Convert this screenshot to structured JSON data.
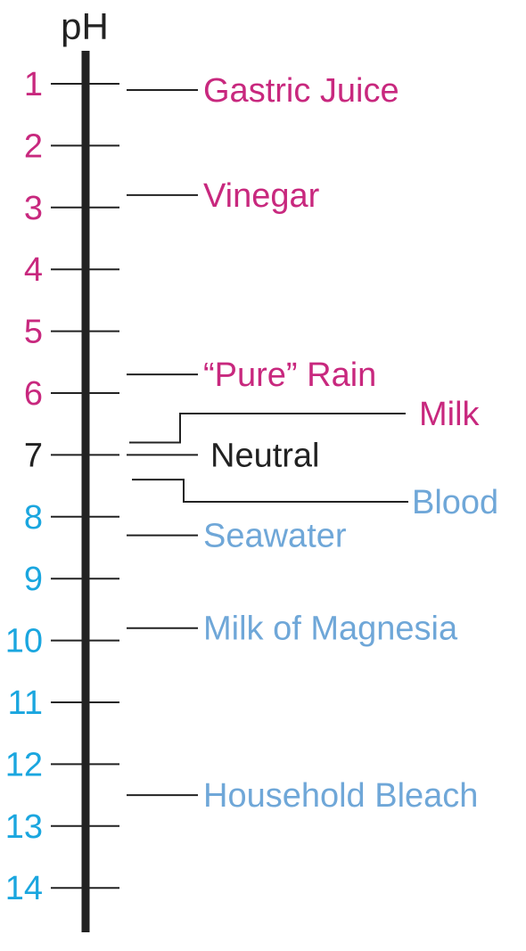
{
  "axis_title": "pH",
  "colors": {
    "acidic": "#c8287e",
    "neutral": "#222222",
    "basic_ticks": "#1aa6df",
    "basic_labels": "#6fa7d8",
    "lines": "#222222"
  },
  "ticks": [
    {
      "label": "1",
      "group": "acidic"
    },
    {
      "label": "2",
      "group": "acidic"
    },
    {
      "label": "3",
      "group": "acidic"
    },
    {
      "label": "4",
      "group": "acidic"
    },
    {
      "label": "5",
      "group": "acidic"
    },
    {
      "label": "6",
      "group": "acidic"
    },
    {
      "label": "7",
      "group": "neutral"
    },
    {
      "label": "8",
      "group": "basic"
    },
    {
      "label": "9",
      "group": "basic"
    },
    {
      "label": "10",
      "group": "basic"
    },
    {
      "label": "11",
      "group": "basic"
    },
    {
      "label": "12",
      "group": "basic"
    },
    {
      "label": "13",
      "group": "basic"
    },
    {
      "label": "14",
      "group": "basic"
    }
  ],
  "substances": [
    {
      "name": "Gastric Juice",
      "ph": 1.1,
      "group": "acidic"
    },
    {
      "name": "Vinegar",
      "ph": 2.8,
      "group": "acidic"
    },
    {
      "name": "“Pure” Rain",
      "ph": 5.7,
      "group": "acidic"
    },
    {
      "name": "Milk",
      "ph": 6.8,
      "group": "acidic"
    },
    {
      "name": "Neutral",
      "ph": 7.0,
      "group": "neutral"
    },
    {
      "name": "Blood",
      "ph": 7.4,
      "group": "basic"
    },
    {
      "name": "Seawater",
      "ph": 8.3,
      "group": "basic"
    },
    {
      "name": "Milk of Magnesia",
      "ph": 9.8,
      "group": "basic"
    },
    {
      "name": "Household Bleach",
      "ph": 12.5,
      "group": "basic"
    }
  ]
}
